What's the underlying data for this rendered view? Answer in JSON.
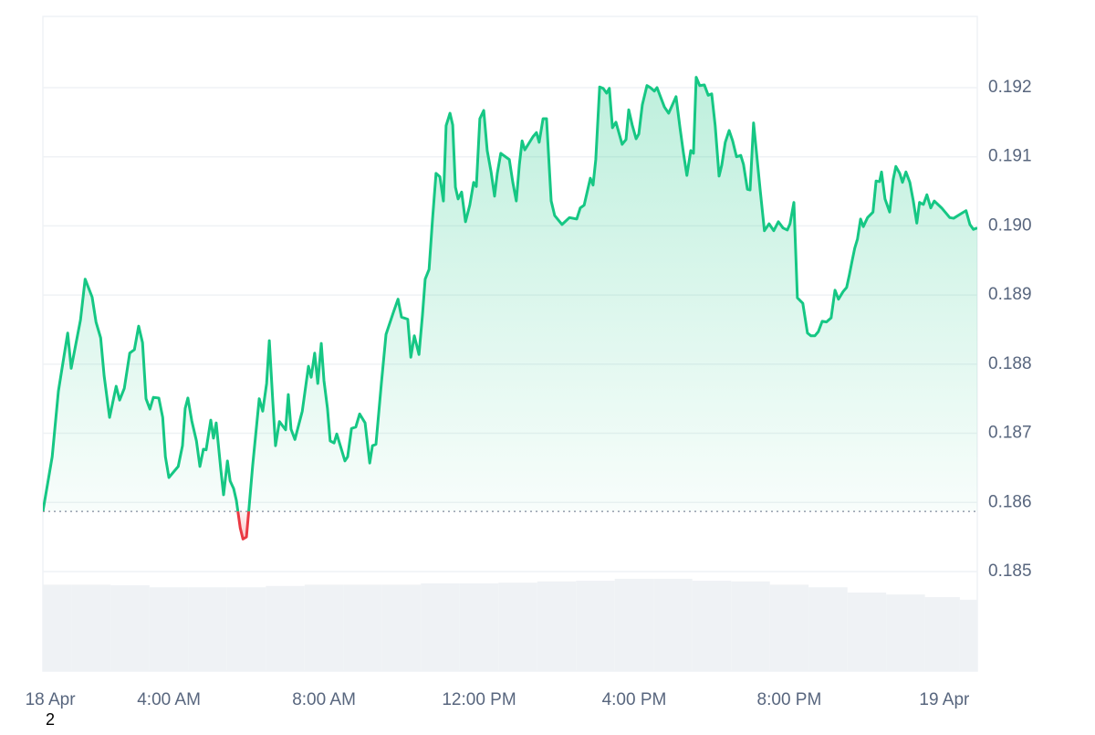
{
  "chart_data": {
    "type": "line",
    "annotation": "2",
    "up_color": "#16c784",
    "down_color": "#ea3943",
    "baseline": 0.18587,
    "grid": true,
    "xlim": [
      0.75,
      24.85
    ],
    "xticks": [
      {
        "value": 0.94,
        "label": "18 Apr"
      },
      {
        "value": 4,
        "label": "4:00 AM"
      },
      {
        "value": 8,
        "label": "8:00 AM"
      },
      {
        "value": 12,
        "label": "12:00 PM"
      },
      {
        "value": 16,
        "label": "4:00 PM"
      },
      {
        "value": 20,
        "label": "8:00 PM"
      },
      {
        "value": 24,
        "label": "19 Apr"
      }
    ],
    "ylim": [
      0.18356,
      0.19303
    ],
    "yticks": [
      0.185,
      0.186,
      0.187,
      0.188,
      0.189,
      {
        "value": 0.19,
        "label": "0.190"
      },
      0.191,
      0.192
    ],
    "price": {
      "x": [
        0.75,
        0.99,
        1.15,
        1.39,
        1.48,
        1.72,
        1.84,
        2.02,
        2.12,
        2.24,
        2.33,
        2.47,
        2.64,
        2.73,
        2.85,
        2.99,
        3.11,
        3.22,
        3.32,
        3.41,
        3.51,
        3.6,
        3.74,
        3.84,
        3.91,
        4.0,
        4.24,
        4.35,
        4.42,
        4.49,
        4.59,
        4.71,
        4.8,
        4.89,
        4.96,
        5.08,
        5.15,
        5.22,
        5.34,
        5.41,
        5.51,
        5.58,
        5.67,
        5.74,
        5.84,
        5.91,
        6.0,
        6.07,
        6.16,
        6.33,
        6.42,
        6.52,
        6.59,
        6.68,
        6.75,
        6.85,
        7.01,
        7.08,
        7.15,
        7.25,
        7.44,
        7.6,
        7.67,
        7.76,
        7.84,
        7.93,
        8.0,
        8.09,
        8.16,
        8.26,
        8.33,
        8.54,
        8.61,
        8.71,
        8.82,
        8.92,
        9.06,
        9.18,
        9.25,
        9.34,
        9.48,
        9.6,
        9.79,
        9.91,
        10.0,
        10.16,
        10.24,
        10.33,
        10.45,
        10.54,
        10.61,
        10.71,
        10.8,
        10.89,
        10.99,
        11.08,
        11.15,
        11.25,
        11.32,
        11.39,
        11.46,
        11.55,
        11.65,
        11.76,
        11.86,
        11.93,
        12.02,
        12.12,
        12.21,
        12.31,
        12.4,
        12.47,
        12.56,
        12.78,
        12.87,
        12.96,
        13.04,
        13.11,
        13.18,
        13.39,
        13.48,
        13.55,
        13.65,
        13.74,
        13.86,
        13.95,
        14.14,
        14.33,
        14.52,
        14.61,
        14.71,
        14.87,
        14.94,
        15.01,
        15.11,
        15.2,
        15.29,
        15.36,
        15.44,
        15.53,
        15.69,
        15.79,
        15.86,
        15.95,
        16.05,
        16.12,
        16.21,
        16.33,
        16.42,
        16.52,
        16.59,
        16.78,
        16.89,
        17.08,
        17.18,
        17.27,
        17.36,
        17.46,
        17.53,
        17.6,
        17.69,
        17.81,
        17.91,
        18.0,
        18.09,
        18.19,
        18.26,
        18.35,
        18.45,
        18.54,
        18.64,
        18.75,
        18.82,
        18.92,
        18.99,
        19.08,
        19.18,
        19.25,
        19.36,
        19.48,
        19.6,
        19.72,
        19.84,
        19.95,
        20.02,
        20.12,
        20.21,
        20.35,
        20.47,
        20.56,
        20.66,
        20.75,
        20.85,
        20.96,
        21.08,
        21.18,
        21.27,
        21.39,
        21.48,
        21.55,
        21.62,
        21.69,
        21.76,
        21.84,
        21.91,
        22.02,
        22.16,
        22.24,
        22.33,
        22.38,
        22.47,
        22.59,
        22.68,
        22.75,
        22.85,
        22.92,
        23.01,
        23.11,
        23.2,
        23.29,
        23.36,
        23.46,
        23.55,
        23.65,
        23.74,
        23.93,
        24.14,
        24.24,
        24.47,
        24.56,
        24.66,
        24.75,
        24.85
      ],
      "values": [
        0.18587,
        0.18666,
        0.18761,
        0.18845,
        0.18794,
        0.18864,
        0.18923,
        0.18897,
        0.18861,
        0.18838,
        0.18783,
        0.18723,
        0.18768,
        0.18748,
        0.18765,
        0.18816,
        0.18821,
        0.18855,
        0.18831,
        0.1875,
        0.18735,
        0.18752,
        0.18751,
        0.18723,
        0.18666,
        0.18636,
        0.18652,
        0.18682,
        0.18736,
        0.18751,
        0.18718,
        0.18689,
        0.18652,
        0.18677,
        0.18676,
        0.18719,
        0.18693,
        0.18715,
        0.18647,
        0.18611,
        0.1866,
        0.18631,
        0.1862,
        0.18603,
        0.18563,
        0.18547,
        0.1855,
        0.18594,
        0.18653,
        0.1875,
        0.18732,
        0.18772,
        0.18834,
        0.18746,
        0.18682,
        0.18717,
        0.18705,
        0.18756,
        0.18706,
        0.18691,
        0.18732,
        0.18797,
        0.18781,
        0.18816,
        0.18772,
        0.1883,
        0.18776,
        0.18736,
        0.18689,
        0.18686,
        0.18699,
        0.1866,
        0.18666,
        0.18707,
        0.18709,
        0.18728,
        0.18715,
        0.18657,
        0.18682,
        0.18684,
        0.18772,
        0.18843,
        0.18875,
        0.18894,
        0.18868,
        0.18865,
        0.1881,
        0.18841,
        0.18814,
        0.18871,
        0.18923,
        0.18937,
        0.1901,
        0.19076,
        0.19071,
        0.19036,
        0.19145,
        0.19163,
        0.19146,
        0.19056,
        0.19039,
        0.19049,
        0.19006,
        0.1903,
        0.19063,
        0.19057,
        0.19155,
        0.19167,
        0.19109,
        0.19078,
        0.19043,
        0.19076,
        0.19105,
        0.19096,
        0.19063,
        0.19036,
        0.19089,
        0.19123,
        0.1911,
        0.19129,
        0.19135,
        0.19121,
        0.19155,
        0.19155,
        0.19036,
        0.19015,
        0.19002,
        0.19012,
        0.1901,
        0.19026,
        0.1903,
        0.19069,
        0.19059,
        0.19096,
        0.19201,
        0.19199,
        0.19192,
        0.19199,
        0.19142,
        0.1915,
        0.19118,
        0.19125,
        0.19168,
        0.19146,
        0.19126,
        0.19133,
        0.19175,
        0.19203,
        0.192,
        0.19195,
        0.192,
        0.19172,
        0.19163,
        0.19187,
        0.19143,
        0.19106,
        0.19073,
        0.19109,
        0.19105,
        0.19215,
        0.19203,
        0.19204,
        0.19189,
        0.19191,
        0.19145,
        0.19072,
        0.19088,
        0.19121,
        0.19138,
        0.19123,
        0.191,
        0.19102,
        0.19089,
        0.19053,
        0.19052,
        0.19149,
        0.19092,
        0.19052,
        0.18993,
        0.19003,
        0.18993,
        0.19006,
        0.18997,
        0.18994,
        0.19003,
        0.19034,
        0.18896,
        0.18888,
        0.18845,
        0.18841,
        0.18841,
        0.18847,
        0.18862,
        0.18861,
        0.18867,
        0.18907,
        0.18894,
        0.18905,
        0.18911,
        0.18929,
        0.18949,
        0.18968,
        0.18981,
        0.1901,
        0.18999,
        0.19012,
        0.1902,
        0.19065,
        0.19064,
        0.19078,
        0.19039,
        0.1902,
        0.19067,
        0.19086,
        0.19076,
        0.19063,
        0.19078,
        0.19063,
        0.19036,
        0.19004,
        0.19034,
        0.19031,
        0.19045,
        0.19026,
        0.19036,
        0.19026,
        0.19012,
        0.19011,
        0.19019,
        0.19022,
        0.19002,
        0.18995,
        0.18997
      ]
    },
    "volume": {
      "color": "#eff2f5",
      "y2lim": [
        0,
        100
      ],
      "x": [
        1,
        2,
        3,
        4,
        5,
        6,
        7,
        8,
        9,
        10,
        11,
        12,
        13,
        14,
        15,
        16,
        17,
        18,
        19,
        20,
        21,
        22,
        23,
        24,
        24.8
      ],
      "values": [
        13.2,
        13.2,
        13.1,
        12.8,
        12.8,
        12.8,
        13.0,
        13.2,
        13.2,
        13.2,
        13.4,
        13.4,
        13.5,
        13.7,
        13.8,
        14.1,
        14.1,
        13.8,
        13.7,
        13.2,
        12.8,
        12.0,
        11.7,
        11.3,
        10.9
      ]
    }
  }
}
